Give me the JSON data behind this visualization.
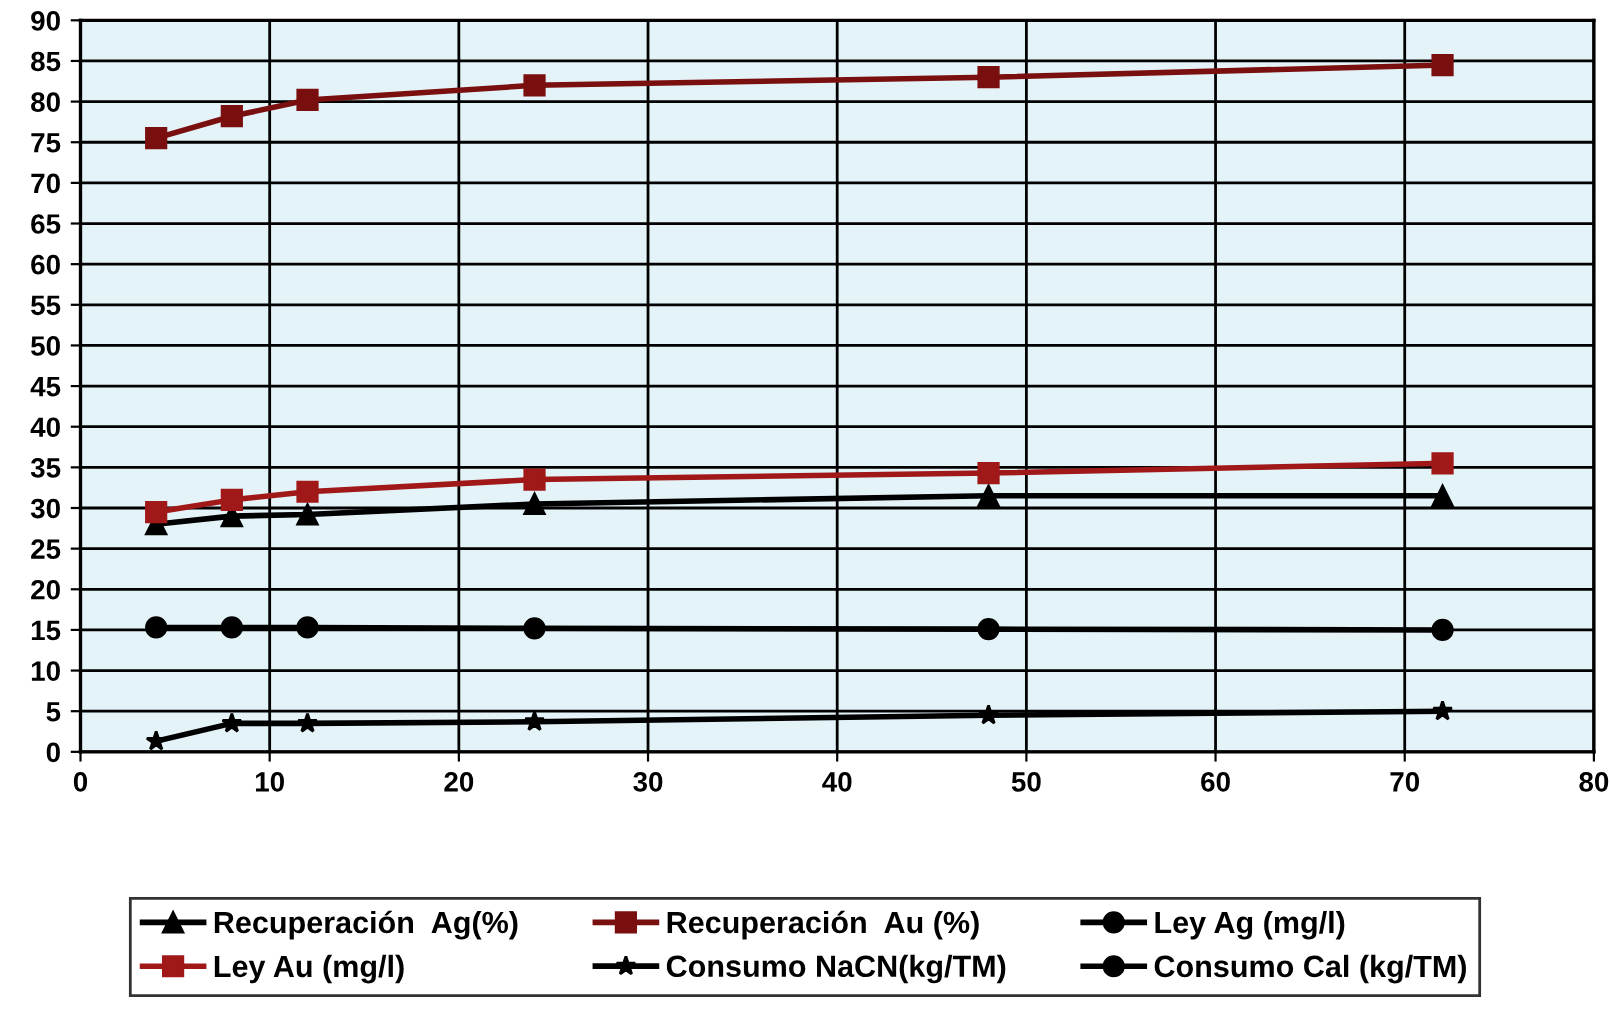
{
  "chart_data": {
    "type": "line",
    "x": [
      4,
      8,
      12,
      24,
      48,
      72
    ],
    "xlim": [
      0,
      80
    ],
    "xticks": [
      0,
      10,
      20,
      30,
      40,
      50,
      60,
      70,
      80
    ],
    "ylim": [
      0,
      90
    ],
    "yticks": [
      0,
      5,
      10,
      15,
      20,
      25,
      30,
      35,
      40,
      45,
      50,
      55,
      60,
      65,
      70,
      75,
      80,
      85,
      90
    ],
    "grid": true,
    "legend": "bottom",
    "series": [
      {
        "name": "Recuperación  Ag(%)",
        "color": "#000000",
        "marker": "triangle",
        "values": [
          28,
          29,
          29.2,
          30.5,
          31.5,
          31.5
        ]
      },
      {
        "name": "Recuperación  Au (%)",
        "color": "#7a0f0f",
        "marker": "square",
        "values": [
          75.5,
          78.2,
          80.2,
          82,
          83,
          84.5
        ]
      },
      {
        "name": "Ley Ag (mg/l)",
        "color": "#000000",
        "marker": "circle",
        "values": [
          null,
          null,
          null,
          null,
          null,
          null
        ]
      },
      {
        "name": "Ley Au (mg/l)",
        "color": "#a01818",
        "marker": "square",
        "values": [
          29.5,
          31,
          32,
          33.5,
          34.3,
          35.5
        ]
      },
      {
        "name": "Consumo NaCN(kg/TM)",
        "color": "#000000",
        "marker": "star",
        "values": [
          1.3,
          3.5,
          3.5,
          3.7,
          4.5,
          5
        ]
      },
      {
        "name": "Consumo Cal (kg/TM)",
        "color": "#000000",
        "marker": "circle",
        "values": [
          15.3,
          15.3,
          15.3,
          15.2,
          15.1,
          15
        ]
      }
    ]
  }
}
